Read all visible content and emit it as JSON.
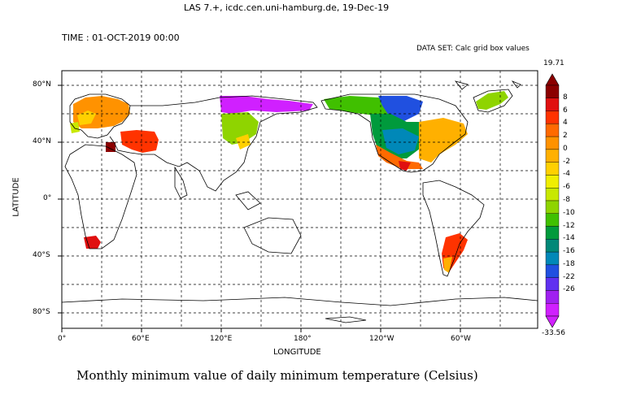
{
  "header": {
    "las_line": "LAS 7.+, icdc.cen.uni-hamburg.de, 19-Dec-19",
    "time_line": "TIME : 01-OCT-2019 00:00",
    "dataset_line": "DATA SET: Calc grid box values"
  },
  "map": {
    "xlabel": "LONGITUDE",
    "ylabel": "LATITUDE",
    "lon_ticks": [
      "0°",
      "60°E",
      "120°E",
      "180°",
      "120°W",
      "60°W"
    ],
    "lat_ticks": [
      "80°N",
      "40°N",
      "0°",
      "40°S",
      "80°S"
    ],
    "caption": "Monthly minimum value of daily minimum temperature (Celsius)"
  },
  "colorbar": {
    "max_label": "19.71",
    "min_label": "-33.56",
    "levels": [
      "8",
      "6",
      "4",
      "2",
      "0",
      "-2",
      "-4",
      "-6",
      "-8",
      "-10",
      "-12",
      "-14",
      "-16",
      "-18",
      "-22",
      "-26"
    ],
    "colors": [
      "#8b0000",
      "#e01010",
      "#ff3300",
      "#ff6a00",
      "#ff9200",
      "#ffb000",
      "#ffd000",
      "#f0ee00",
      "#c8e800",
      "#8fd400",
      "#40c000",
      "#009a3c",
      "#008878",
      "#0088b8",
      "#2050e0",
      "#6030f0",
      "#a020f0",
      "#d020ff"
    ]
  }
}
